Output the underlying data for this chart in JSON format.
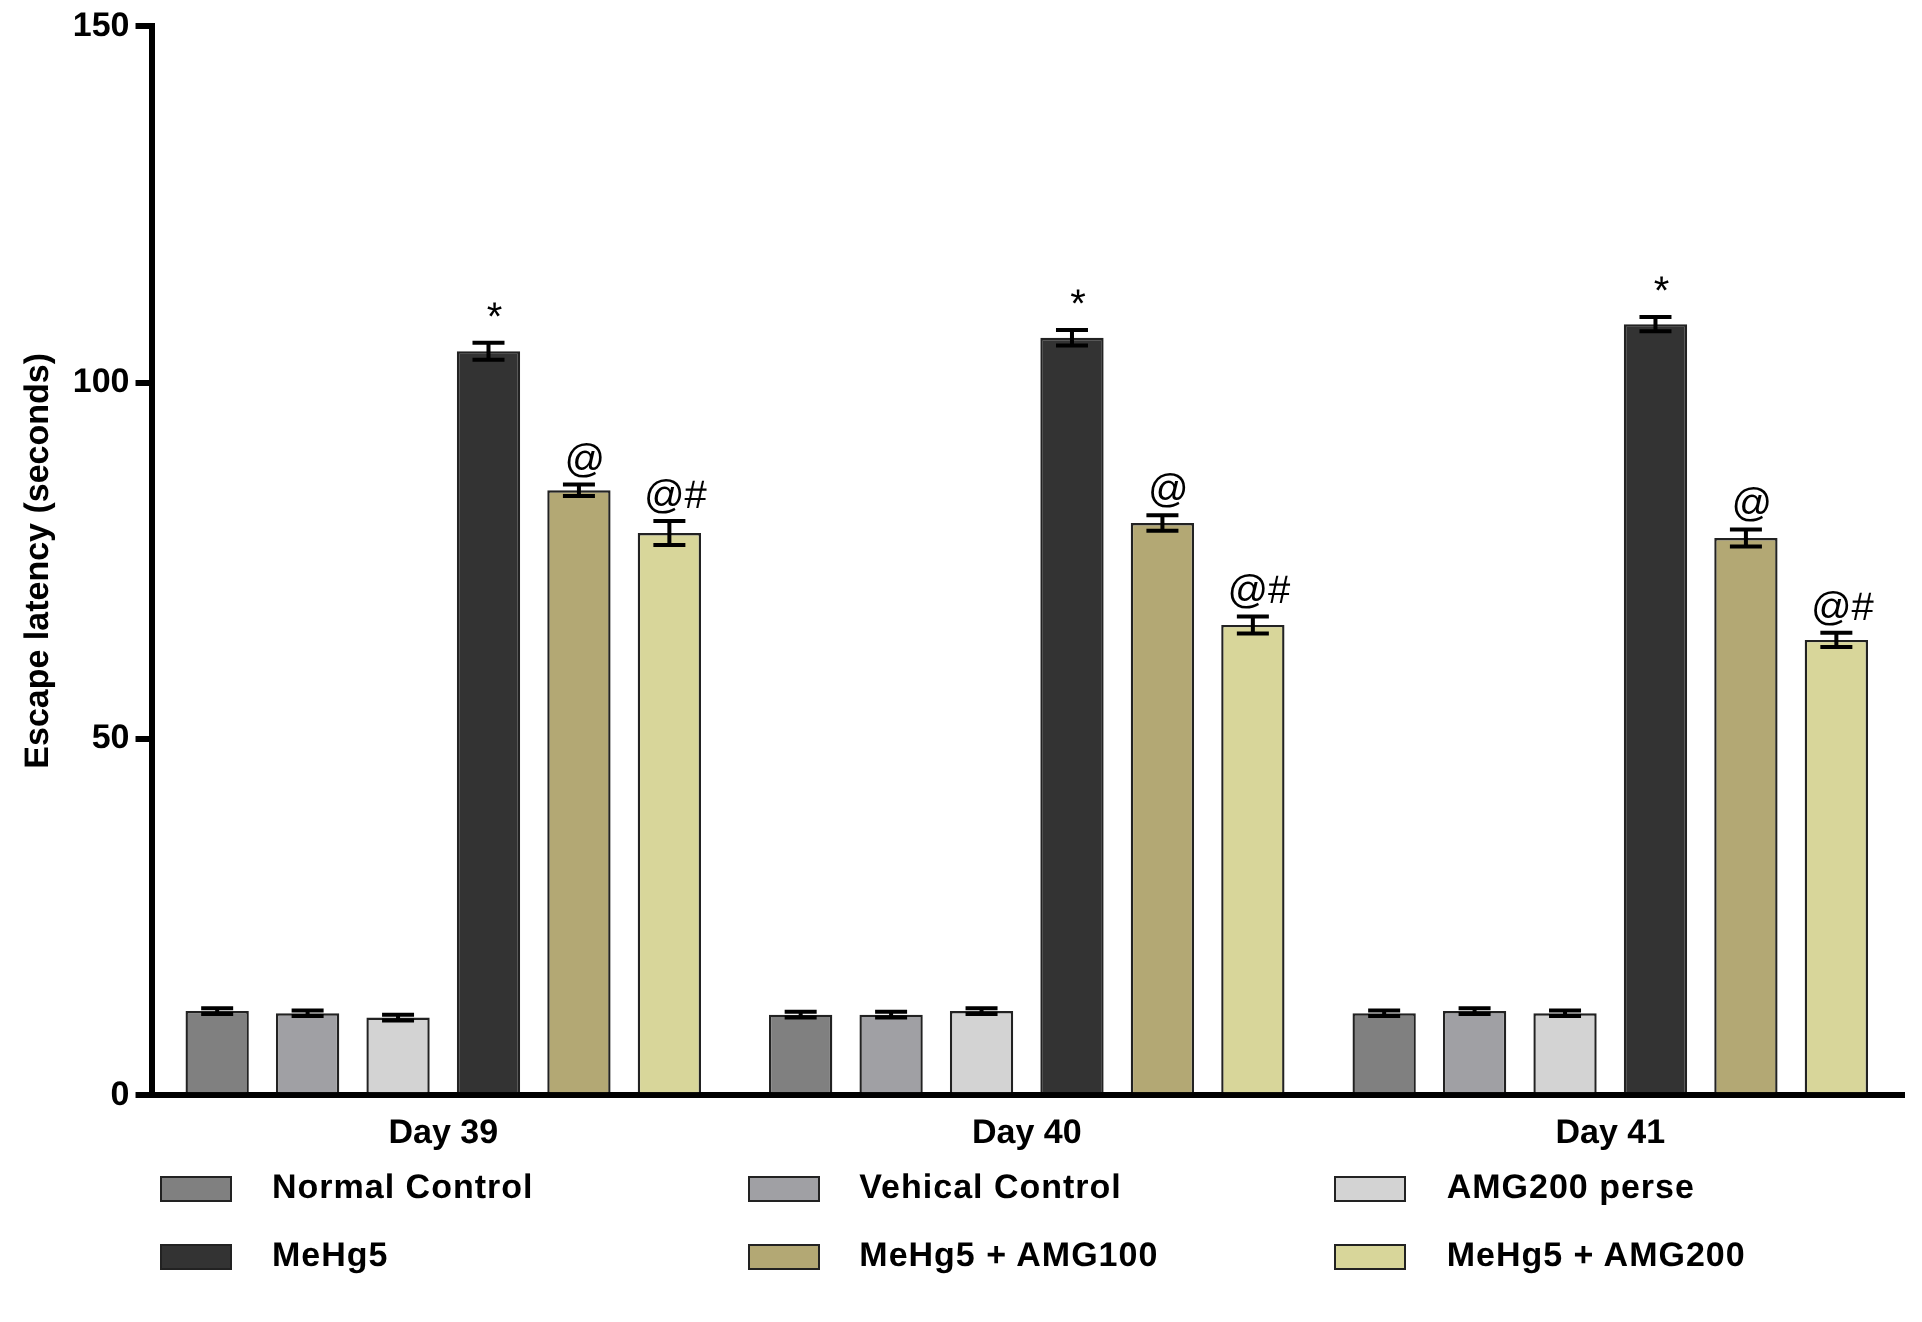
{
  "chart_data": {
    "type": "bar",
    "ylabel": "Escape latency (seconds)",
    "categories": [
      "Day 39",
      "Day 40",
      "Day 41"
    ],
    "series": [
      {
        "name": "Normal Control",
        "color": "#808080",
        "values": [
          11.8,
          11.3,
          11.5
        ],
        "errors": [
          0.4,
          0.4,
          0.4
        ]
      },
      {
        "name": "Vehical Control",
        "color": "#a0a0a4",
        "values": [
          11.5,
          11.3,
          11.8
        ],
        "errors": [
          0.4,
          0.4,
          0.4
        ]
      },
      {
        "name": "AMG200 perse",
        "color": "#d3d3d3",
        "values": [
          10.9,
          11.8,
          11.5
        ],
        "errors": [
          0.4,
          0.4,
          0.4
        ]
      },
      {
        "name": "MeHg5",
        "color": "#333333",
        "values": [
          104.4,
          106.3,
          108.2
        ],
        "errors": [
          1.2,
          1.1,
          1.0
        ],
        "value_labels": [
          "*",
          "*",
          "*"
        ]
      },
      {
        "name": "MeHg5 + AMG100",
        "color": "#b3a874",
        "values": [
          84.9,
          80.3,
          78.2
        ],
        "errors": [
          0.8,
          1.1,
          1.2
        ],
        "value_labels": [
          "@",
          "@",
          "@"
        ]
      },
      {
        "name": "MeHg5 + AMG200",
        "color": "#d8d69a",
        "values": [
          78.9,
          66.0,
          63.9
        ],
        "errors": [
          1.7,
          1.2,
          1.0
        ],
        "value_labels": [
          "@#",
          "@#",
          "@#"
        ]
      }
    ],
    "ylim": [
      0,
      150
    ],
    "yticks": [
      0,
      50,
      100,
      150
    ],
    "grid": false,
    "legend": "bottom"
  }
}
